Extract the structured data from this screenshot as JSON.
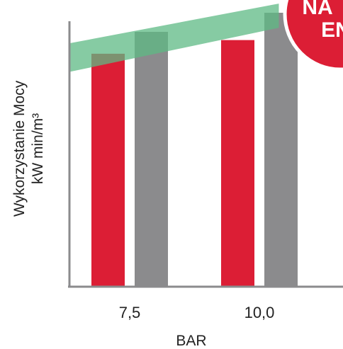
{
  "chart_data": {
    "type": "bar",
    "categories": [
      "7,5",
      "10,0"
    ],
    "xlabel": "BAR",
    "ylabel_line1": "Wykorzystanie Mocy",
    "ylabel_line2": "kW min/m³",
    "ylim": [
      0,
      100
    ],
    "grid": false,
    "series": [
      {
        "values": [
          85,
          90
        ],
        "color": "#dc1e35"
      },
      {
        "values": [
          93,
          100
        ],
        "color": "#8b8b8d"
      }
    ],
    "band": {
      "x_start": 0,
      "x_end": 1.15,
      "lower": [
        83,
        93
      ],
      "upper": [
        93,
        102
      ],
      "color": "#5dba84",
      "opacity": 0.75
    }
  },
  "badge": {
    "line1": "NA",
    "line2": "EN",
    "color": "#dc1e35"
  },
  "colors": {
    "axis": "#8b8b8d"
  }
}
